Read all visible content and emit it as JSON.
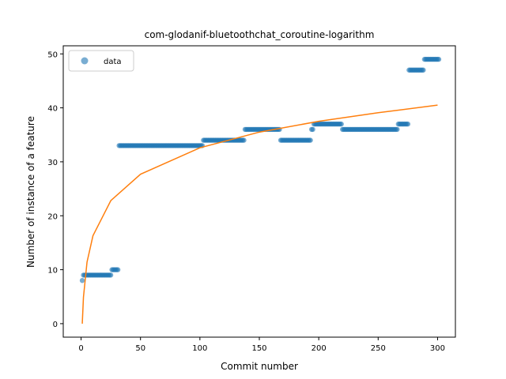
{
  "chart_data": {
    "type": "scatter",
    "title": "com-glodanif-bluetoothchat_coroutine-logarithm",
    "xlabel": "Commit number",
    "ylabel": "Number of instance of a feature",
    "xlim": [
      -15,
      315
    ],
    "ylim": [
      -2.5,
      51.5
    ],
    "xticks": [
      0,
      50,
      100,
      150,
      200,
      250,
      300
    ],
    "yticks": [
      0,
      10,
      20,
      30,
      40,
      50
    ],
    "legend": {
      "position": "top-left",
      "entries": [
        "data"
      ]
    },
    "grid": false,
    "colors": {
      "data": "#1f77b4",
      "fit": "#ff7f0e"
    },
    "series": [
      {
        "name": "data",
        "kind": "scatter",
        "segments": [
          {
            "x_start": 1,
            "x_end": 1,
            "y": 8
          },
          {
            "x_start": 2,
            "x_end": 25,
            "y": 9
          },
          {
            "x_start": 26,
            "x_end": 31,
            "y": 10
          },
          {
            "x_start": 32,
            "x_end": 102,
            "y": 33
          },
          {
            "x_start": 103,
            "x_end": 137,
            "y": 34
          },
          {
            "x_start": 138,
            "x_end": 167,
            "y": 36
          },
          {
            "x_start": 168,
            "x_end": 193,
            "y": 34
          },
          {
            "x_start": 194,
            "x_end": 195,
            "y": 36
          },
          {
            "x_start": 196,
            "x_end": 219,
            "y": 37
          },
          {
            "x_start": 220,
            "x_end": 266,
            "y": 36
          },
          {
            "x_start": 267,
            "x_end": 275,
            "y": 37
          },
          {
            "x_start": 276,
            "x_end": 288,
            "y": 47
          },
          {
            "x_start": 289,
            "x_end": 301,
            "y": 49
          }
        ]
      },
      {
        "kind": "line",
        "model": "logarithmic",
        "points": [
          {
            "x": 1,
            "y": 0
          },
          {
            "x": 2,
            "y": 4.9
          },
          {
            "x": 5,
            "y": 11.4
          },
          {
            "x": 10,
            "y": 16.3
          },
          {
            "x": 25,
            "y": 22.8
          },
          {
            "x": 50,
            "y": 27.7
          },
          {
            "x": 100,
            "y": 32.6
          },
          {
            "x": 150,
            "y": 35.5
          },
          {
            "x": 200,
            "y": 37.5
          },
          {
            "x": 250,
            "y": 39.1
          },
          {
            "x": 300,
            "y": 40.5
          }
        ]
      }
    ]
  }
}
